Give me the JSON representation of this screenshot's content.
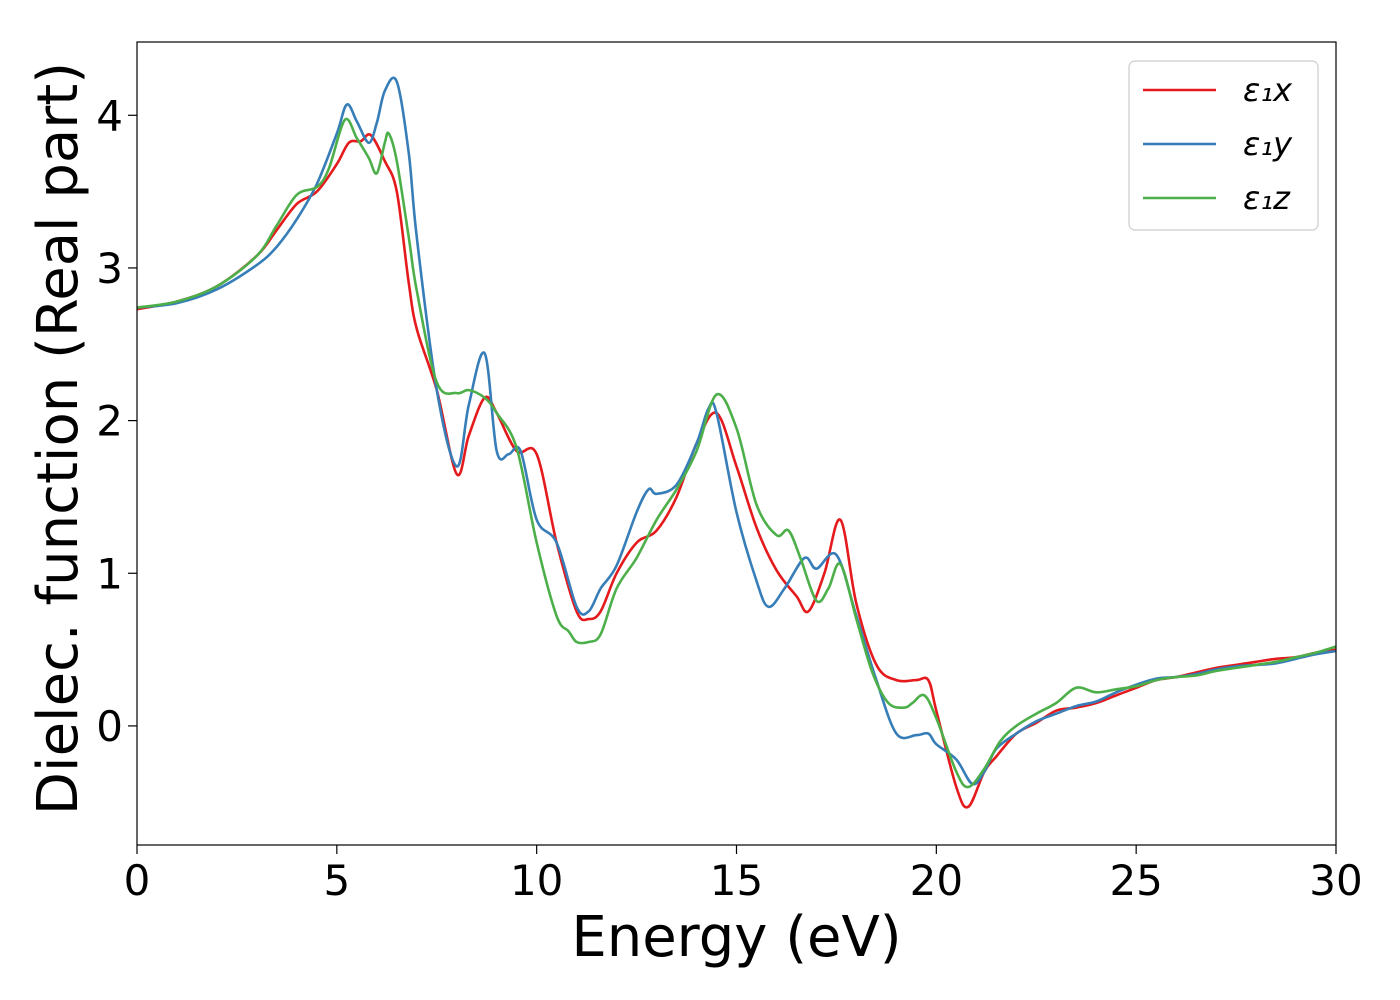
{
  "chart_data": {
    "type": "line",
    "xlabel": "Energy (eV)",
    "ylabel": "Dielec. function (Real part)",
    "xlim": [
      0,
      30
    ],
    "ylim": [
      -0.78,
      4.48
    ],
    "xticks": [
      0,
      5,
      10,
      15,
      20,
      25,
      30
    ],
    "xtick_labels": [
      "0",
      "5",
      "10",
      "15",
      "20",
      "25",
      "30"
    ],
    "yticks": [
      0,
      1,
      2,
      3,
      4
    ],
    "ytick_labels": [
      "0",
      "1",
      "2",
      "3",
      "4"
    ],
    "grid": false,
    "legend_position": "top-right",
    "series": [
      {
        "name": "ε₁x",
        "color": "#e41a1c",
        "x": [
          0,
          1,
          2,
          3,
          3.5,
          4,
          4.5,
          5,
          5.3,
          5.6,
          5.85,
          6.2,
          6.5,
          6.8,
          7,
          7.5,
          8,
          8.3,
          8.7,
          9,
          9.5,
          10,
          10.5,
          11,
          11.3,
          11.6,
          12,
          12.5,
          13,
          13.5,
          14,
          14.5,
          15,
          15.5,
          16,
          16.5,
          16.8,
          17.2,
          17.6,
          18,
          18.5,
          19,
          19.5,
          19.8,
          20,
          20.5,
          20.8,
          21.2,
          21.5,
          22,
          22.5,
          23,
          23.5,
          24,
          24.5,
          25,
          25.5,
          26,
          26.5,
          27,
          27.5,
          28,
          28.5,
          29,
          29.5,
          30
        ],
        "y": [
          2.73,
          2.78,
          2.88,
          3.08,
          3.25,
          3.42,
          3.5,
          3.68,
          3.82,
          3.83,
          3.87,
          3.7,
          3.5,
          2.9,
          2.6,
          2.2,
          1.65,
          1.9,
          2.15,
          2.05,
          1.8,
          1.78,
          1.2,
          0.75,
          0.7,
          0.75,
          1.0,
          1.2,
          1.28,
          1.5,
          1.85,
          2.05,
          1.7,
          1.3,
          1.02,
          0.85,
          0.75,
          1.0,
          1.35,
          0.8,
          0.4,
          0.3,
          0.3,
          0.3,
          0.1,
          -0.4,
          -0.53,
          -0.3,
          -0.2,
          -0.05,
          0.02,
          0.1,
          0.12,
          0.15,
          0.2,
          0.25,
          0.3,
          0.32,
          0.35,
          0.38,
          0.4,
          0.42,
          0.44,
          0.45,
          0.48,
          0.5
        ]
      },
      {
        "name": "ε₁y",
        "color": "#377eb8",
        "x": [
          0,
          1,
          2,
          3,
          3.5,
          4,
          4.5,
          5,
          5.25,
          5.5,
          5.8,
          6,
          6.2,
          6.5,
          6.8,
          7,
          7.5,
          8,
          8.3,
          8.7,
          9,
          9.3,
          9.6,
          10,
          10.5,
          11,
          11.3,
          11.6,
          12,
          12.5,
          12.8,
          13,
          13.5,
          14,
          14.3,
          14.5,
          15,
          15.5,
          15.8,
          16.2,
          16.7,
          17,
          17.5,
          18,
          18.5,
          19,
          19.5,
          19.8,
          20,
          20.5,
          20.9,
          21.2,
          21.5,
          22,
          22.5,
          23,
          23.5,
          24,
          24.5,
          25,
          25.5,
          26,
          26.5,
          27,
          27.5,
          28,
          28.5,
          29,
          29.5,
          30
        ],
        "y": [
          2.74,
          2.77,
          2.86,
          3.02,
          3.14,
          3.32,
          3.55,
          3.88,
          4.07,
          3.96,
          3.82,
          3.95,
          4.16,
          4.22,
          3.75,
          3.2,
          2.2,
          1.7,
          2.1,
          2.44,
          1.8,
          1.78,
          1.8,
          1.35,
          1.2,
          0.78,
          0.75,
          0.9,
          1.05,
          1.4,
          1.55,
          1.52,
          1.58,
          1.85,
          2.08,
          2.05,
          1.4,
          0.95,
          0.78,
          0.9,
          1.1,
          1.03,
          1.12,
          0.72,
          0.3,
          -0.05,
          -0.06,
          -0.05,
          -0.12,
          -0.22,
          -0.38,
          -0.3,
          -0.15,
          -0.05,
          0.03,
          0.08,
          0.13,
          0.16,
          0.22,
          0.27,
          0.31,
          0.32,
          0.34,
          0.37,
          0.39,
          0.4,
          0.41,
          0.44,
          0.47,
          0.49
        ]
      },
      {
        "name": "ε₁z",
        "color": "#4daf4a",
        "x": [
          0,
          1,
          2,
          3,
          3.5,
          4,
          4.5,
          4.8,
          5.2,
          5.5,
          5.8,
          6,
          6.2,
          6.3,
          6.5,
          6.8,
          7,
          7.5,
          8,
          8.3,
          8.7,
          9,
          9.5,
          10,
          10.5,
          10.8,
          11,
          11.3,
          11.6,
          12,
          12.5,
          13,
          13.5,
          14,
          14.5,
          15,
          15.5,
          16,
          16.3,
          16.6,
          17,
          17.3,
          17.6,
          18,
          18.4,
          18.8,
          19.2,
          19.4,
          19.7,
          20,
          20.5,
          20.8,
          21.2,
          21.6,
          22,
          22.5,
          23,
          23.5,
          24,
          24.5,
          25,
          25.5,
          26,
          26.5,
          27,
          27.5,
          28,
          28.5,
          29,
          29.5,
          30
        ],
        "y": [
          2.74,
          2.78,
          2.88,
          3.08,
          3.28,
          3.48,
          3.53,
          3.65,
          3.97,
          3.85,
          3.72,
          3.62,
          3.82,
          3.88,
          3.7,
          3.2,
          2.85,
          2.25,
          2.18,
          2.2,
          2.15,
          2.05,
          1.82,
          1.2,
          0.72,
          0.62,
          0.55,
          0.55,
          0.6,
          0.9,
          1.1,
          1.35,
          1.55,
          1.8,
          2.17,
          1.95,
          1.45,
          1.25,
          1.28,
          1.1,
          0.82,
          0.9,
          1.06,
          0.7,
          0.35,
          0.15,
          0.12,
          0.15,
          0.2,
          0.05,
          -0.3,
          -0.4,
          -0.28,
          -0.1,
          0.0,
          0.08,
          0.15,
          0.25,
          0.22,
          0.24,
          0.26,
          0.3,
          0.32,
          0.33,
          0.36,
          0.38,
          0.4,
          0.42,
          0.45,
          0.48,
          0.52
        ]
      }
    ]
  }
}
